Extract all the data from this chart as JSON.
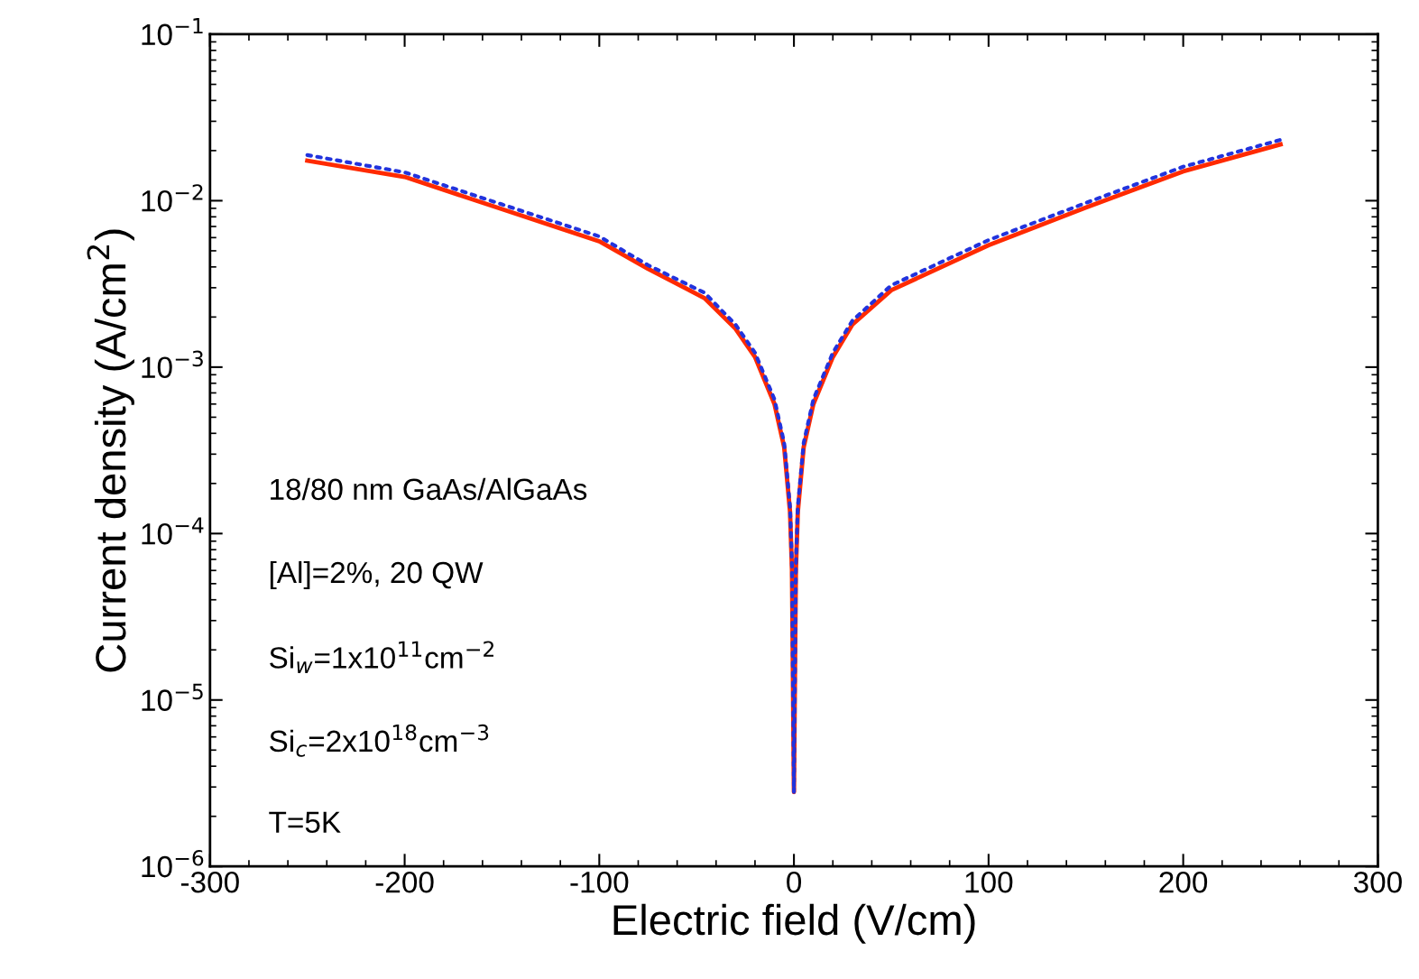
{
  "chart_data": {
    "type": "line",
    "xlabel": "Electric field (V/cm)",
    "ylabel": "Current density (A/cm$^{2}$)",
    "log": "y",
    "grid": false,
    "legend": false,
    "marker": "none",
    "xlim": [
      -300,
      300
    ],
    "xticks": [
      -300,
      -200,
      -100,
      0,
      100,
      200,
      300
    ],
    "ylim": [
      1e-06,
      0.1
    ],
    "yticks": [
      {
        "value": 1e-06,
        "label": "10$^{−6}$"
      },
      {
        "value": 1e-05,
        "label": "10$^{−5}$"
      },
      {
        "value": 0.0001,
        "label": "10$^{−4}$"
      },
      {
        "value": 0.001,
        "label": "10$^{−3}$"
      },
      {
        "value": 0.01,
        "label": "10$^{−2}$"
      },
      {
        "value": 0.1,
        "label": "10$^{−1}$"
      }
    ],
    "x": [
      -250,
      -200,
      -150,
      -100,
      -75,
      -46,
      -30,
      -20,
      -10,
      -5,
      -2,
      -1,
      0,
      1,
      2,
      5,
      10,
      20,
      30,
      50,
      100,
      150,
      200,
      250
    ],
    "series": [
      {
        "color": "#ff2a00",
        "line_style": "solid",
        "values": [
          0.0174,
          0.0139,
          0.0089,
          0.0057,
          0.0039,
          0.0026,
          0.0017,
          0.00115,
          0.0006,
          0.00033,
          0.000135,
          6e-05,
          2.8e-06,
          6e-05,
          0.000135,
          0.00033,
          0.0006,
          0.00115,
          0.0018,
          0.0029,
          0.0054,
          0.0091,
          0.015,
          0.0218
        ]
      },
      {
        "color": "#2233dd",
        "line_style": "dotted",
        "values": [
          0.0188,
          0.0148,
          0.0095,
          0.0061,
          0.0041,
          0.0028,
          0.0018,
          0.00122,
          0.00064,
          0.00035,
          0.000145,
          6.4e-05,
          2.8e-06,
          6.4e-05,
          0.000145,
          0.00035,
          0.00064,
          0.00122,
          0.0019,
          0.0031,
          0.0058,
          0.0097,
          0.016,
          0.0232
        ]
      }
    ],
    "annotations": [
      "18/80 nm GaAs/AlGaAs",
      "[Al]=2%, 20 QW",
      "Si$_{w}$=1x10$^{11}$cm$^{−2}$",
      "Si$_{c}$=2x10$^{18}$cm$^{−3}$",
      "T=5K"
    ]
  }
}
